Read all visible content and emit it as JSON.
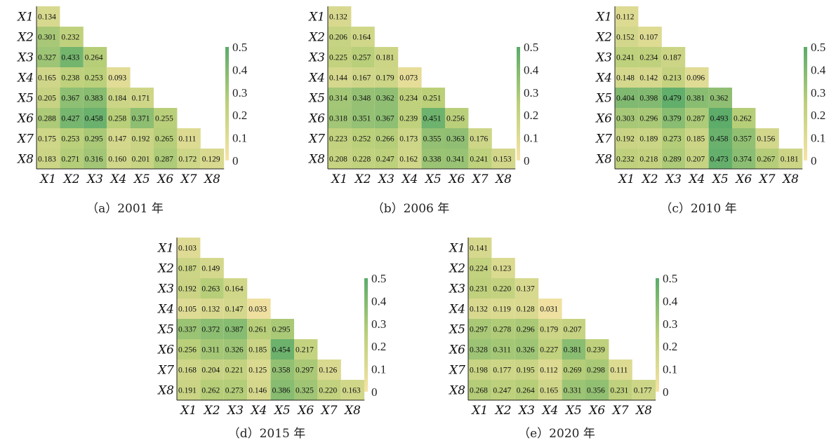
{
  "colors": {
    "low": "#f7e3a6",
    "mid": "#bcd07a",
    "high": "#5aab6a"
  },
  "chart_data": [
    {
      "type": "heatmap",
      "caption": "（a）2001 年",
      "row_labels": [
        "X1",
        "X2",
        "X3",
        "X4",
        "X5",
        "X6",
        "X7",
        "X8"
      ],
      "col_labels": [
        "X1",
        "X2",
        "X3",
        "X4",
        "X5",
        "X6",
        "X7",
        "X8"
      ],
      "values": [
        [
          "0.134"
        ],
        [
          "0.301",
          "0.232"
        ],
        [
          "0.327",
          "0.433",
          "0.264"
        ],
        [
          "0.165",
          "0.238",
          "0.253",
          "0.093"
        ],
        [
          "0.205",
          "0.367",
          "0.383",
          "0.184",
          "0.171"
        ],
        [
          "0.288",
          "0.427",
          "0.458",
          "0.258",
          "0.371",
          "0.255"
        ],
        [
          "0.175",
          "0.253",
          "0.295",
          "0.147",
          "0.192",
          "0.265",
          "0.111"
        ],
        [
          "0.183",
          "0.271",
          "0.316",
          "0.160",
          "0.201",
          "0.287",
          "0.172",
          "0.129"
        ]
      ],
      "colorbar": {
        "range": [
          0,
          0.5
        ],
        "ticks": [
          "0.5",
          "0.4",
          "0.3",
          "0.2",
          "0.1",
          "0"
        ]
      }
    },
    {
      "type": "heatmap",
      "caption": "（b）2006 年",
      "row_labels": [
        "X1",
        "X2",
        "X3",
        "X4",
        "X5",
        "X6",
        "X7",
        "X8"
      ],
      "col_labels": [
        "X1",
        "X2",
        "X3",
        "X4",
        "X5",
        "X6",
        "X7",
        "X8"
      ],
      "values": [
        [
          "0.132"
        ],
        [
          "0.206",
          "0.164"
        ],
        [
          "0.225",
          "0.257",
          "0.181"
        ],
        [
          "0.144",
          "0.167",
          "0.179",
          "0.073"
        ],
        [
          "0.314",
          "0.348",
          "0.362",
          "0.234",
          "0.251"
        ],
        [
          "0.318",
          "0.351",
          "0.367",
          "0.239",
          "0.451",
          "0.256"
        ],
        [
          "0.223",
          "0.252",
          "0.266",
          "0.173",
          "0.355",
          "0.363",
          "0.176"
        ],
        [
          "0.208",
          "0.228",
          "0.247",
          "0.162",
          "0.338",
          "0.341",
          "0.241",
          "0.153"
        ]
      ],
      "colorbar": {
        "range": [
          0,
          0.5
        ],
        "ticks": [
          "0.5",
          "0.4",
          "0.3",
          "0.2",
          "0.1",
          "0"
        ]
      }
    },
    {
      "type": "heatmap",
      "caption": "（c）2010 年",
      "row_labels": [
        "X1",
        "X2",
        "X3",
        "X4",
        "X5",
        "X6",
        "X7",
        "X8"
      ],
      "col_labels": [
        "X1",
        "X2",
        "X3",
        "X4",
        "X5",
        "X6",
        "X7",
        "X8"
      ],
      "values": [
        [
          "0.112"
        ],
        [
          "0.152",
          "0.107"
        ],
        [
          "0.241",
          "0.234",
          "0.187"
        ],
        [
          "0.148",
          "0.142",
          "0.213",
          "0.096"
        ],
        [
          "0.404",
          "0.398",
          "0.479",
          "0.381",
          "0.362"
        ],
        [
          "0.303",
          "0.296",
          "0.379",
          "0.287",
          "0.493",
          "0.262"
        ],
        [
          "0.192",
          "0.189",
          "0.273",
          "0.185",
          "0.458",
          "0.357",
          "0.156"
        ],
        [
          "0.232",
          "0.218",
          "0.289",
          "0.207",
          "0.473",
          "0.374",
          "0.267",
          "0.181"
        ]
      ],
      "colorbar": {
        "range": [
          0,
          0.5
        ],
        "ticks": [
          "0.5",
          "0.4",
          "0.3",
          "0.2",
          "0.1",
          "0"
        ]
      }
    },
    {
      "type": "heatmap",
      "caption": "（d）2015 年",
      "row_labels": [
        "X1",
        "X2",
        "X3",
        "X4",
        "X5",
        "X6",
        "X7",
        "X8"
      ],
      "col_labels": [
        "X1",
        "X2",
        "X3",
        "X4",
        "X5",
        "X6",
        "X7",
        "X8"
      ],
      "values": [
        [
          "0.103"
        ],
        [
          "0.187",
          "0.149"
        ],
        [
          "0.192",
          "0.263",
          "0.164"
        ],
        [
          "0.105",
          "0.132",
          "0.147",
          "0.033"
        ],
        [
          "0.337",
          "0.372",
          "0.387",
          "0.261",
          "0.295"
        ],
        [
          "0.256",
          "0.311",
          "0.326",
          "0.185",
          "0.454",
          "0.217"
        ],
        [
          "0.168",
          "0.204",
          "0.221",
          "0.125",
          "0.358",
          "0.297",
          "0.126"
        ],
        [
          "0.191",
          "0.262",
          "0.273",
          "0.146",
          "0.386",
          "0.325",
          "0.220",
          "0.163"
        ]
      ],
      "colorbar": {
        "range": [
          0,
          0.5
        ],
        "ticks": [
          "0.5",
          "0.4",
          "0.3",
          "0.2",
          "0.1",
          "0"
        ]
      }
    },
    {
      "type": "heatmap",
      "caption": "（e）2020 年",
      "row_labels": [
        "X1",
        "X2",
        "X3",
        "X4",
        "X5",
        "X6",
        "X7",
        "X8"
      ],
      "col_labels": [
        "X1",
        "X2",
        "X3",
        "X4",
        "X5",
        "X6",
        "X7",
        "X8"
      ],
      "values": [
        [
          "0.141"
        ],
        [
          "0.224",
          "0.123"
        ],
        [
          "0.231",
          "0.220",
          "0.137"
        ],
        [
          "0.132",
          "0.119",
          "0.128",
          "0.031"
        ],
        [
          "0.297",
          "0.278",
          "0.296",
          "0.179",
          "0.207"
        ],
        [
          "0.328",
          "0.311",
          "0.326",
          "0.227",
          "0.381",
          "0.239"
        ],
        [
          "0.198",
          "0.177",
          "0.195",
          "0.112",
          "0.269",
          "0.298",
          "0.111"
        ],
        [
          "0.268",
          "0.247",
          "0.264",
          "0.165",
          "0.331",
          "0.356",
          "0.231",
          "0.177"
        ]
      ],
      "colorbar": {
        "range": [
          0,
          0.5
        ],
        "ticks": [
          "0.5",
          "0.4",
          "0.3",
          "0.2",
          "0.1",
          "0"
        ]
      }
    }
  ]
}
